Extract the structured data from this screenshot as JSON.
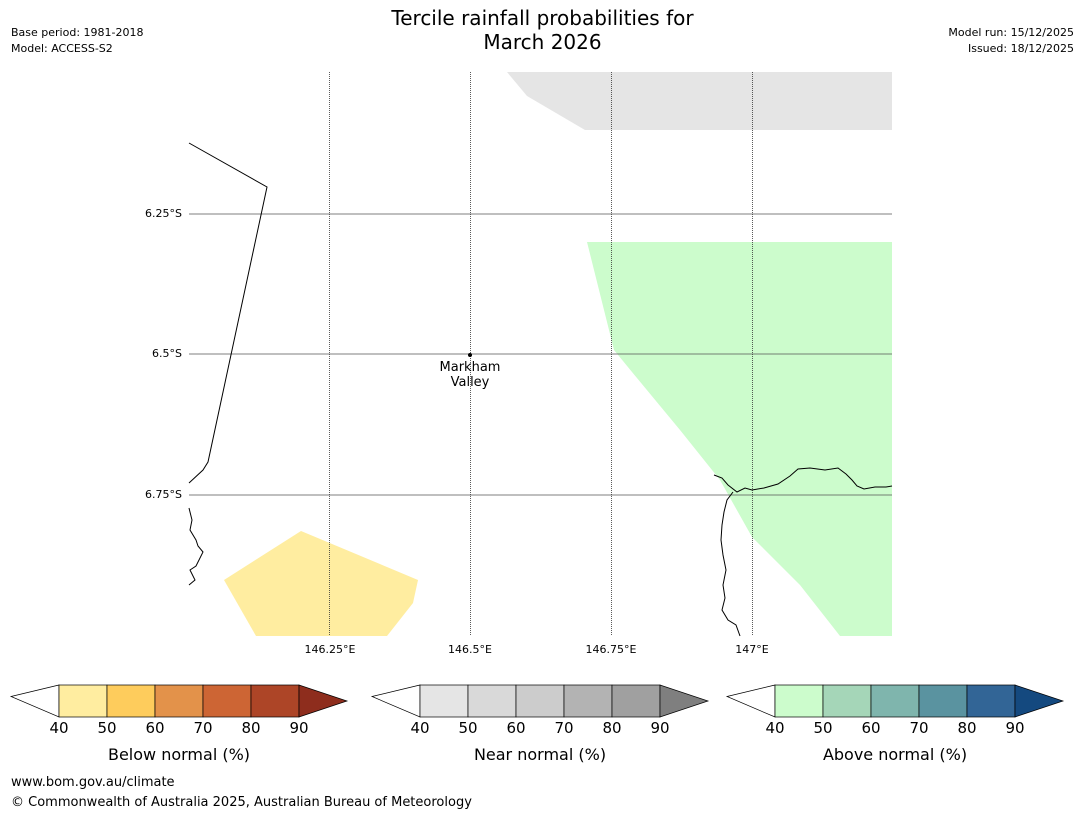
{
  "header": {
    "title_line1": "Tercile rainfall probabilities for",
    "title_line2": "March 2026",
    "base_period": "Base period: 1981-2018",
    "model": "Model: ACCESS-S2",
    "model_run": "Model run: 15/12/2025",
    "issued": "Issued: 18/12/2025"
  },
  "map": {
    "lat_labels": [
      "6.25°S",
      "6.5°S",
      "6.75°S"
    ],
    "lon_labels": [
      "146.25°E",
      "146.5°E",
      "146.75°E",
      "147°E"
    ],
    "place": {
      "name_line1": "Markham",
      "name_line2": "Valley"
    },
    "colors": {
      "below_fill": "#ffeda0",
      "near_fill": "#e5e5e5",
      "above_fill": "#ccfccc",
      "gridline": "#555555",
      "coast": "#000000"
    }
  },
  "colorbars": [
    {
      "label": "Below normal (%)",
      "ticks": [
        "40",
        "50",
        "60",
        "70",
        "80",
        "90"
      ],
      "colors": [
        "#ffeda0",
        "#fecc5c",
        "#e3924a",
        "#cd6534",
        "#ad4527",
        "#8e2d1d"
      ]
    },
    {
      "label": "Near normal (%)",
      "ticks": [
        "40",
        "50",
        "60",
        "70",
        "80",
        "90"
      ],
      "colors": [
        "#e5e5e5",
        "#d9d9d9",
        "#cccccc",
        "#b3b3b3",
        "#a0a0a0",
        "#7f7f7f"
      ]
    },
    {
      "label": "Above normal (%)",
      "ticks": [
        "40",
        "50",
        "60",
        "70",
        "80",
        "90"
      ],
      "colors": [
        "#ccfccc",
        "#a5d6b8",
        "#7fb5ad",
        "#5a93a0",
        "#326596",
        "#14497f"
      ]
    }
  ],
  "footer": {
    "url": "www.bom.gov.au/climate",
    "copyright": "© Commonwealth of Australia 2025, Australian Bureau of Meteorology"
  }
}
